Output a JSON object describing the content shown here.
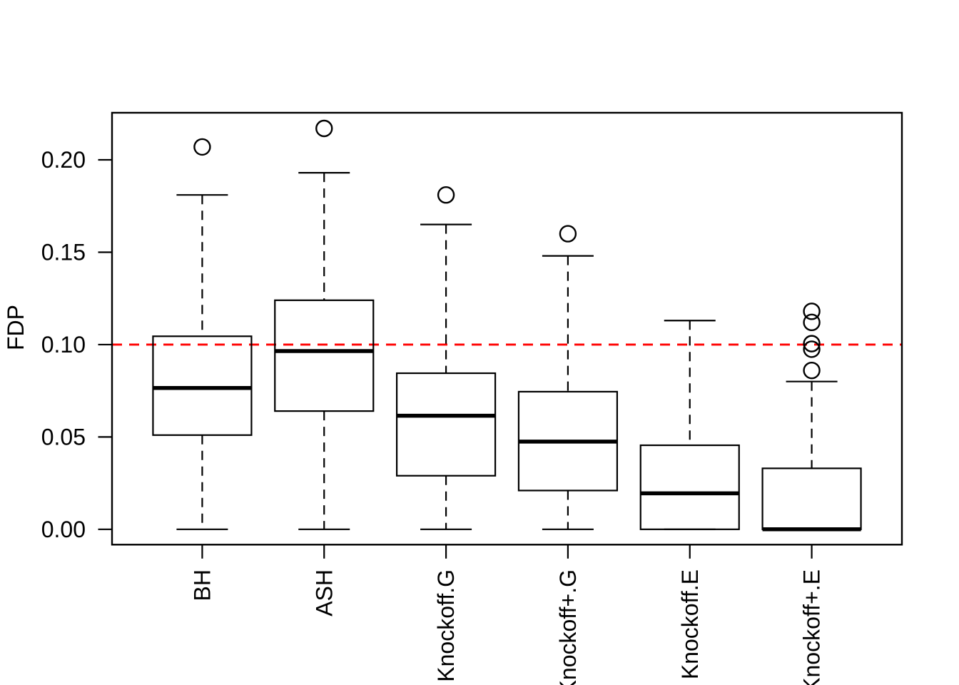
{
  "chart_data": {
    "type": "boxplot",
    "title": "",
    "xlabel": "",
    "ylabel": "FDP",
    "categories": [
      "BH",
      "ASH",
      "Knockoff.G",
      "Knockoff+.G",
      "Knockoff.E",
      "Knockoff+.E"
    ],
    "ylim": [
      -0.0083,
      0.2255
    ],
    "xlim": [
      0.26,
      6.74
    ],
    "yticks": [
      0.0,
      0.05,
      0.1,
      0.15,
      0.2
    ],
    "ytick_labels": [
      "0.00",
      "0.05",
      "0.10",
      "0.15",
      "0.20"
    ],
    "grid": false,
    "legend": "none",
    "reference_line": {
      "value": 0.1,
      "color": "#ff0000",
      "style": "dashed"
    },
    "colors": {
      "box_stroke": "#000000",
      "box_fill": "none",
      "background": "#ffffff"
    },
    "boxes": [
      {
        "label": "BH",
        "whisker_low": 0.0,
        "q1": 0.051,
        "median": 0.0765,
        "q3": 0.1045,
        "whisker_high": 0.181,
        "outliers": [
          0.207
        ]
      },
      {
        "label": "ASH",
        "whisker_low": 0.0,
        "q1": 0.064,
        "median": 0.0965,
        "q3": 0.124,
        "whisker_high": 0.193,
        "outliers": [
          0.217
        ]
      },
      {
        "label": "Knockoff.G",
        "whisker_low": 0.0,
        "q1": 0.029,
        "median": 0.0615,
        "q3": 0.0845,
        "whisker_high": 0.165,
        "outliers": [
          0.181
        ]
      },
      {
        "label": "Knockoff+.G",
        "whisker_low": 0.0,
        "q1": 0.021,
        "median": 0.0475,
        "q3": 0.0745,
        "whisker_high": 0.148,
        "outliers": [
          0.16
        ]
      },
      {
        "label": "Knockoff.E",
        "whisker_low": 0.0,
        "q1": 0.0,
        "median": 0.0195,
        "q3": 0.0455,
        "whisker_high": 0.113,
        "outliers": []
      },
      {
        "label": "Knockoff+.E",
        "whisker_low": 0.0,
        "q1": 0.0,
        "median": 0.0,
        "q3": 0.033,
        "whisker_high": 0.08,
        "outliers": [
          0.086,
          0.0975,
          0.1005,
          0.112,
          0.118
        ]
      }
    ]
  }
}
